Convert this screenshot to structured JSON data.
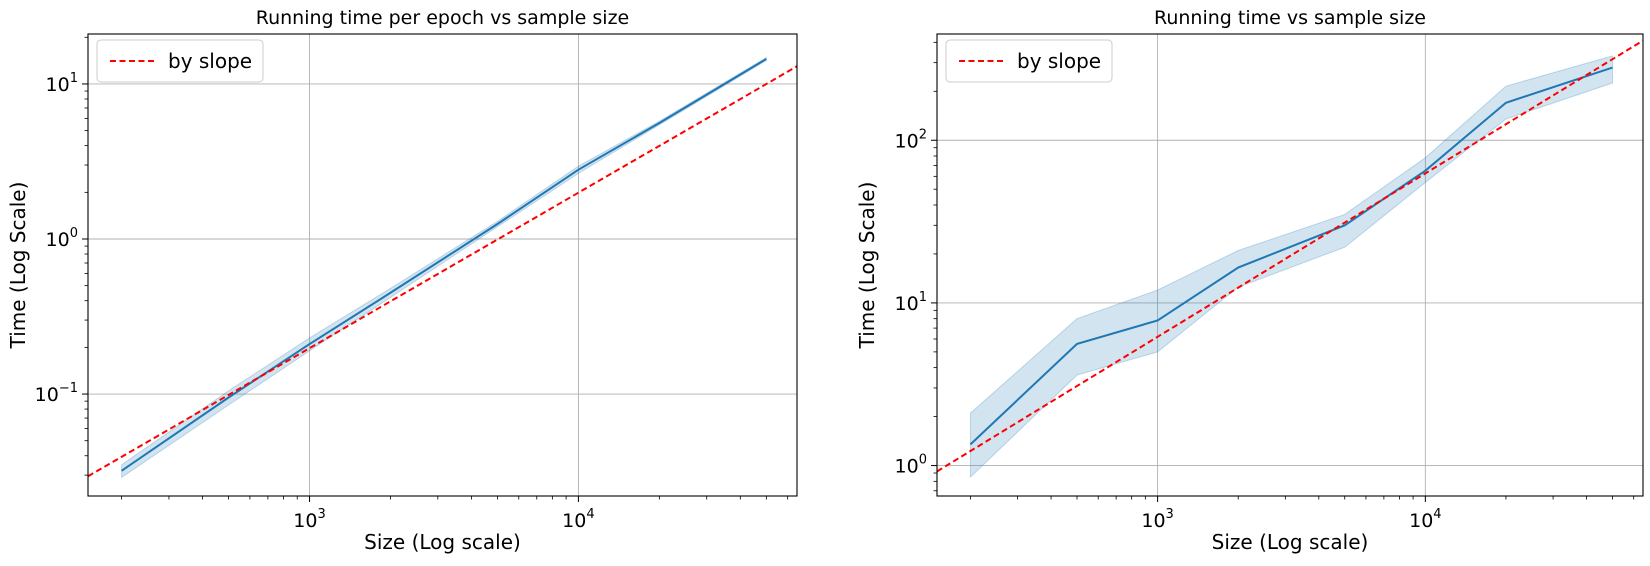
{
  "chart_data": [
    {
      "type": "line",
      "title": "Running time per epoch vs sample size",
      "xlabel": "Size (Log scale)",
      "ylabel": "Time (Log Scale)",
      "xscale": "log",
      "yscale": "log",
      "xlim": [
        150,
        65000
      ],
      "ylim": [
        0.022,
        21
      ],
      "xticks": [
        {
          "value": 1000,
          "base": "10",
          "exp": "3"
        },
        {
          "value": 10000,
          "base": "10",
          "exp": "4"
        }
      ],
      "yticks": [
        {
          "value": 0.1,
          "base": "10",
          "exp": "−1"
        },
        {
          "value": 1,
          "base": "10",
          "exp": "0"
        },
        {
          "value": 10,
          "base": "10",
          "exp": "1"
        }
      ],
      "grid": true,
      "legend": {
        "position": "top-left",
        "entries": [
          "by slope"
        ]
      },
      "series": [
        {
          "kind": "mean",
          "color": "#1f77b4",
          "x": [
            200,
            500,
            1000,
            2000,
            5000,
            10000,
            20000,
            50000
          ],
          "y": [
            0.032,
            0.095,
            0.21,
            0.45,
            1.25,
            2.8,
            5.6,
            14.5
          ]
        },
        {
          "kind": "band",
          "color": "#1f77b4",
          "x": [
            200,
            500,
            1000,
            2000,
            5000,
            10000,
            20000,
            50000
          ],
          "lower": [
            0.029,
            0.085,
            0.19,
            0.42,
            1.2,
            2.65,
            5.45,
            14.2
          ],
          "upper": [
            0.035,
            0.105,
            0.23,
            0.48,
            1.3,
            2.95,
            5.75,
            14.8
          ]
        },
        {
          "name": "by slope",
          "kind": "reference",
          "color": "#ff0000",
          "dashed": true,
          "x": [
            150,
            65000
          ],
          "y": [
            0.0295,
            13.0
          ]
        }
      ]
    },
    {
      "type": "line",
      "title": "Running time vs sample size",
      "xlabel": "Size (Log scale)",
      "ylabel": "Time (Log Scale)",
      "xscale": "log",
      "yscale": "log",
      "xlim": [
        150,
        65000
      ],
      "ylim": [
        0.65,
        450
      ],
      "xticks": [
        {
          "value": 1000,
          "base": "10",
          "exp": "3"
        },
        {
          "value": 10000,
          "base": "10",
          "exp": "4"
        }
      ],
      "yticks": [
        {
          "value": 1,
          "base": "10",
          "exp": "0"
        },
        {
          "value": 10,
          "base": "10",
          "exp": "1"
        },
        {
          "value": 100,
          "base": "10",
          "exp": "2"
        }
      ],
      "grid": true,
      "legend": {
        "position": "top-left",
        "entries": [
          "by slope"
        ]
      },
      "series": [
        {
          "kind": "mean",
          "color": "#1f77b4",
          "x": [
            200,
            500,
            1000,
            2000,
            5000,
            10000,
            20000,
            50000
          ],
          "y": [
            1.35,
            5.6,
            7.8,
            16.5,
            30,
            65,
            170,
            280
          ]
        },
        {
          "kind": "band",
          "color": "#1f77b4",
          "x": [
            200,
            500,
            1000,
            2000,
            5000,
            10000,
            20000,
            50000
          ],
          "lower": [
            0.85,
            3.6,
            5.0,
            12.5,
            22,
            55,
            135,
            225
          ],
          "upper": [
            2.1,
            8.0,
            12.0,
            21.0,
            35,
            78,
            215,
            330
          ]
        },
        {
          "name": "by slope",
          "kind": "reference",
          "color": "#ff0000",
          "dashed": true,
          "x": [
            150,
            65000
          ],
          "y": [
            0.92,
            410
          ]
        }
      ]
    }
  ]
}
